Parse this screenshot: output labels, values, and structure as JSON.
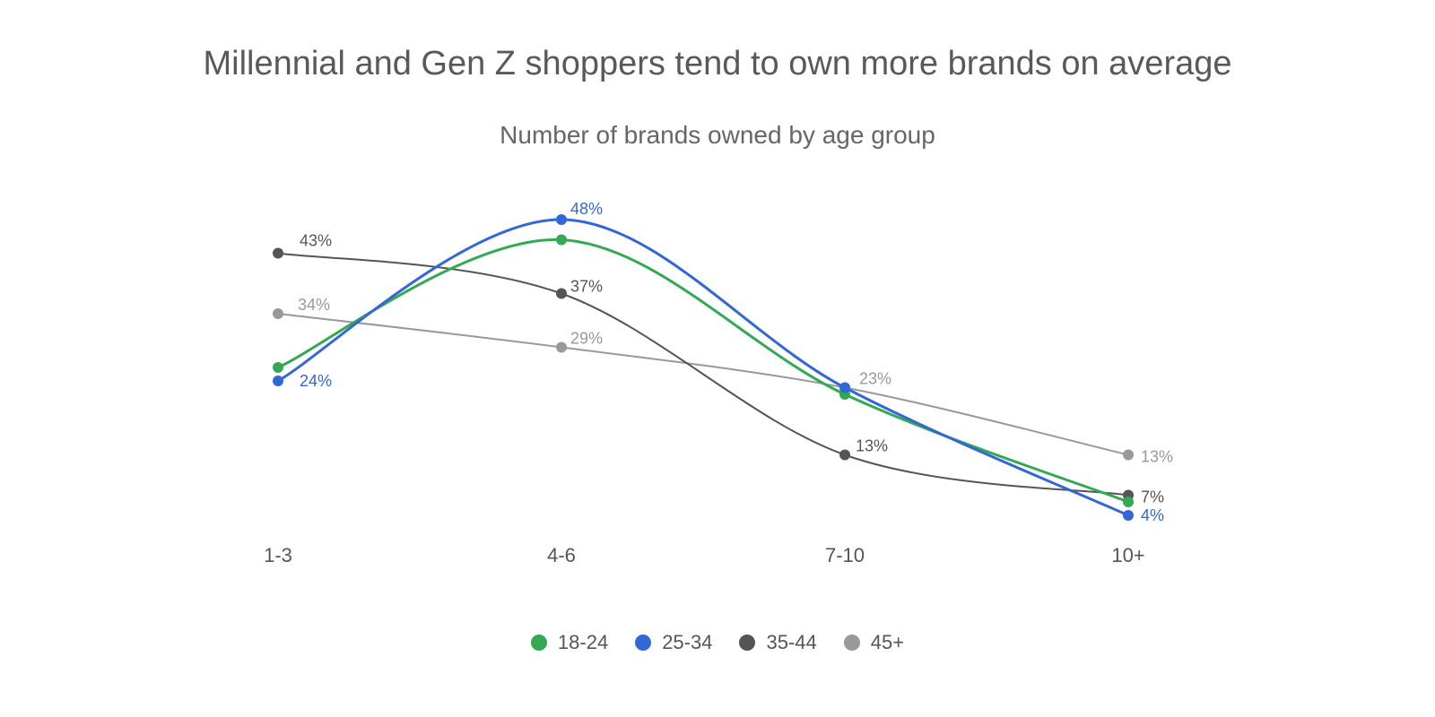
{
  "chart_data": {
    "type": "line",
    "title": "Millennial and Gen Z shoppers tend to own more brands on average",
    "subtitle": "Number of brands owned by age group",
    "xlabel": "",
    "ylabel": "",
    "ylim": [
      0,
      50
    ],
    "grid": false,
    "legend_position": "bottom",
    "categories": [
      "1-3",
      "4-6",
      "7-10",
      "10+"
    ],
    "series": [
      {
        "name": "18-24",
        "color": "#34a853",
        "values": [
          26,
          45,
          22,
          6
        ],
        "labels": [
          "",
          "",
          "",
          ""
        ]
      },
      {
        "name": "25-34",
        "color": "#3367d6",
        "values": [
          24,
          48,
          23,
          4
        ],
        "labels": [
          "24%",
          "48%",
          "",
          "4%"
        ]
      },
      {
        "name": "35-44",
        "color": "#555555",
        "values": [
          43,
          37,
          13,
          7
        ],
        "labels": [
          "43%",
          "37%",
          "13%",
          "7%"
        ]
      },
      {
        "name": "45+",
        "color": "#999999",
        "values": [
          34,
          29,
          23,
          13
        ],
        "labels": [
          "34%",
          "29%",
          "23%",
          "13%"
        ]
      }
    ]
  }
}
